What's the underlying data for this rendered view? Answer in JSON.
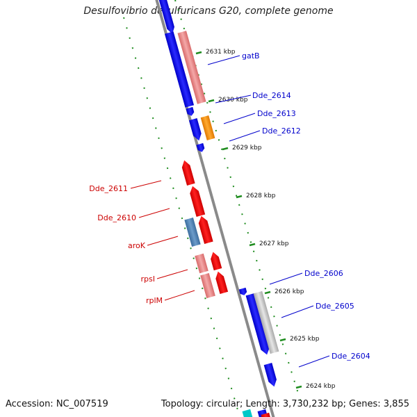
{
  "map": {
    "title": "Desulfovibrio desulfuricans G20, complete genome",
    "accession": "Accession: NC_007519",
    "summary": "Topology: circular; Length: 3,730,232 bp; Genes: 3,855"
  },
  "colors": {
    "backbone": "#8a8a8a",
    "tick": "#1e8c1e",
    "forward_cds": "#0000e6",
    "reverse_cds": "#e00000",
    "forward_label": "#0000cc",
    "reverse_label": "#cc0000",
    "rna_light": "#e88a8a",
    "other_orange": "#ff8c00",
    "other_steel": "#4a7fb0",
    "other_grey": "#c4c4c4"
  },
  "ticks": [
    {
      "kbp": "2631 kbp"
    },
    {
      "kbp": "2630 kbp"
    },
    {
      "kbp": "2629 kbp"
    },
    {
      "kbp": "2628 kbp"
    },
    {
      "kbp": "2627 kbp"
    },
    {
      "kbp": "2626 kbp"
    },
    {
      "kbp": "2625 kbp"
    },
    {
      "kbp": "2624 kbp"
    }
  ],
  "labels": [
    {
      "text": "gatB",
      "strand": "forward"
    },
    {
      "text": "Dde_2614",
      "strand": "forward"
    },
    {
      "text": "Dde_2613",
      "strand": "forward"
    },
    {
      "text": "Dde_2612",
      "strand": "forward"
    },
    {
      "text": "Dde_2611",
      "strand": "reverse"
    },
    {
      "text": "Dde_2610",
      "strand": "reverse"
    },
    {
      "text": "aroK",
      "strand": "reverse"
    },
    {
      "text": "rpsI",
      "strand": "reverse"
    },
    {
      "text": "rplM",
      "strand": "reverse"
    },
    {
      "text": "Dde_2606",
      "strand": "forward"
    },
    {
      "text": "Dde_2605",
      "strand": "forward"
    },
    {
      "text": "Dde_2604",
      "strand": "forward"
    }
  ]
}
